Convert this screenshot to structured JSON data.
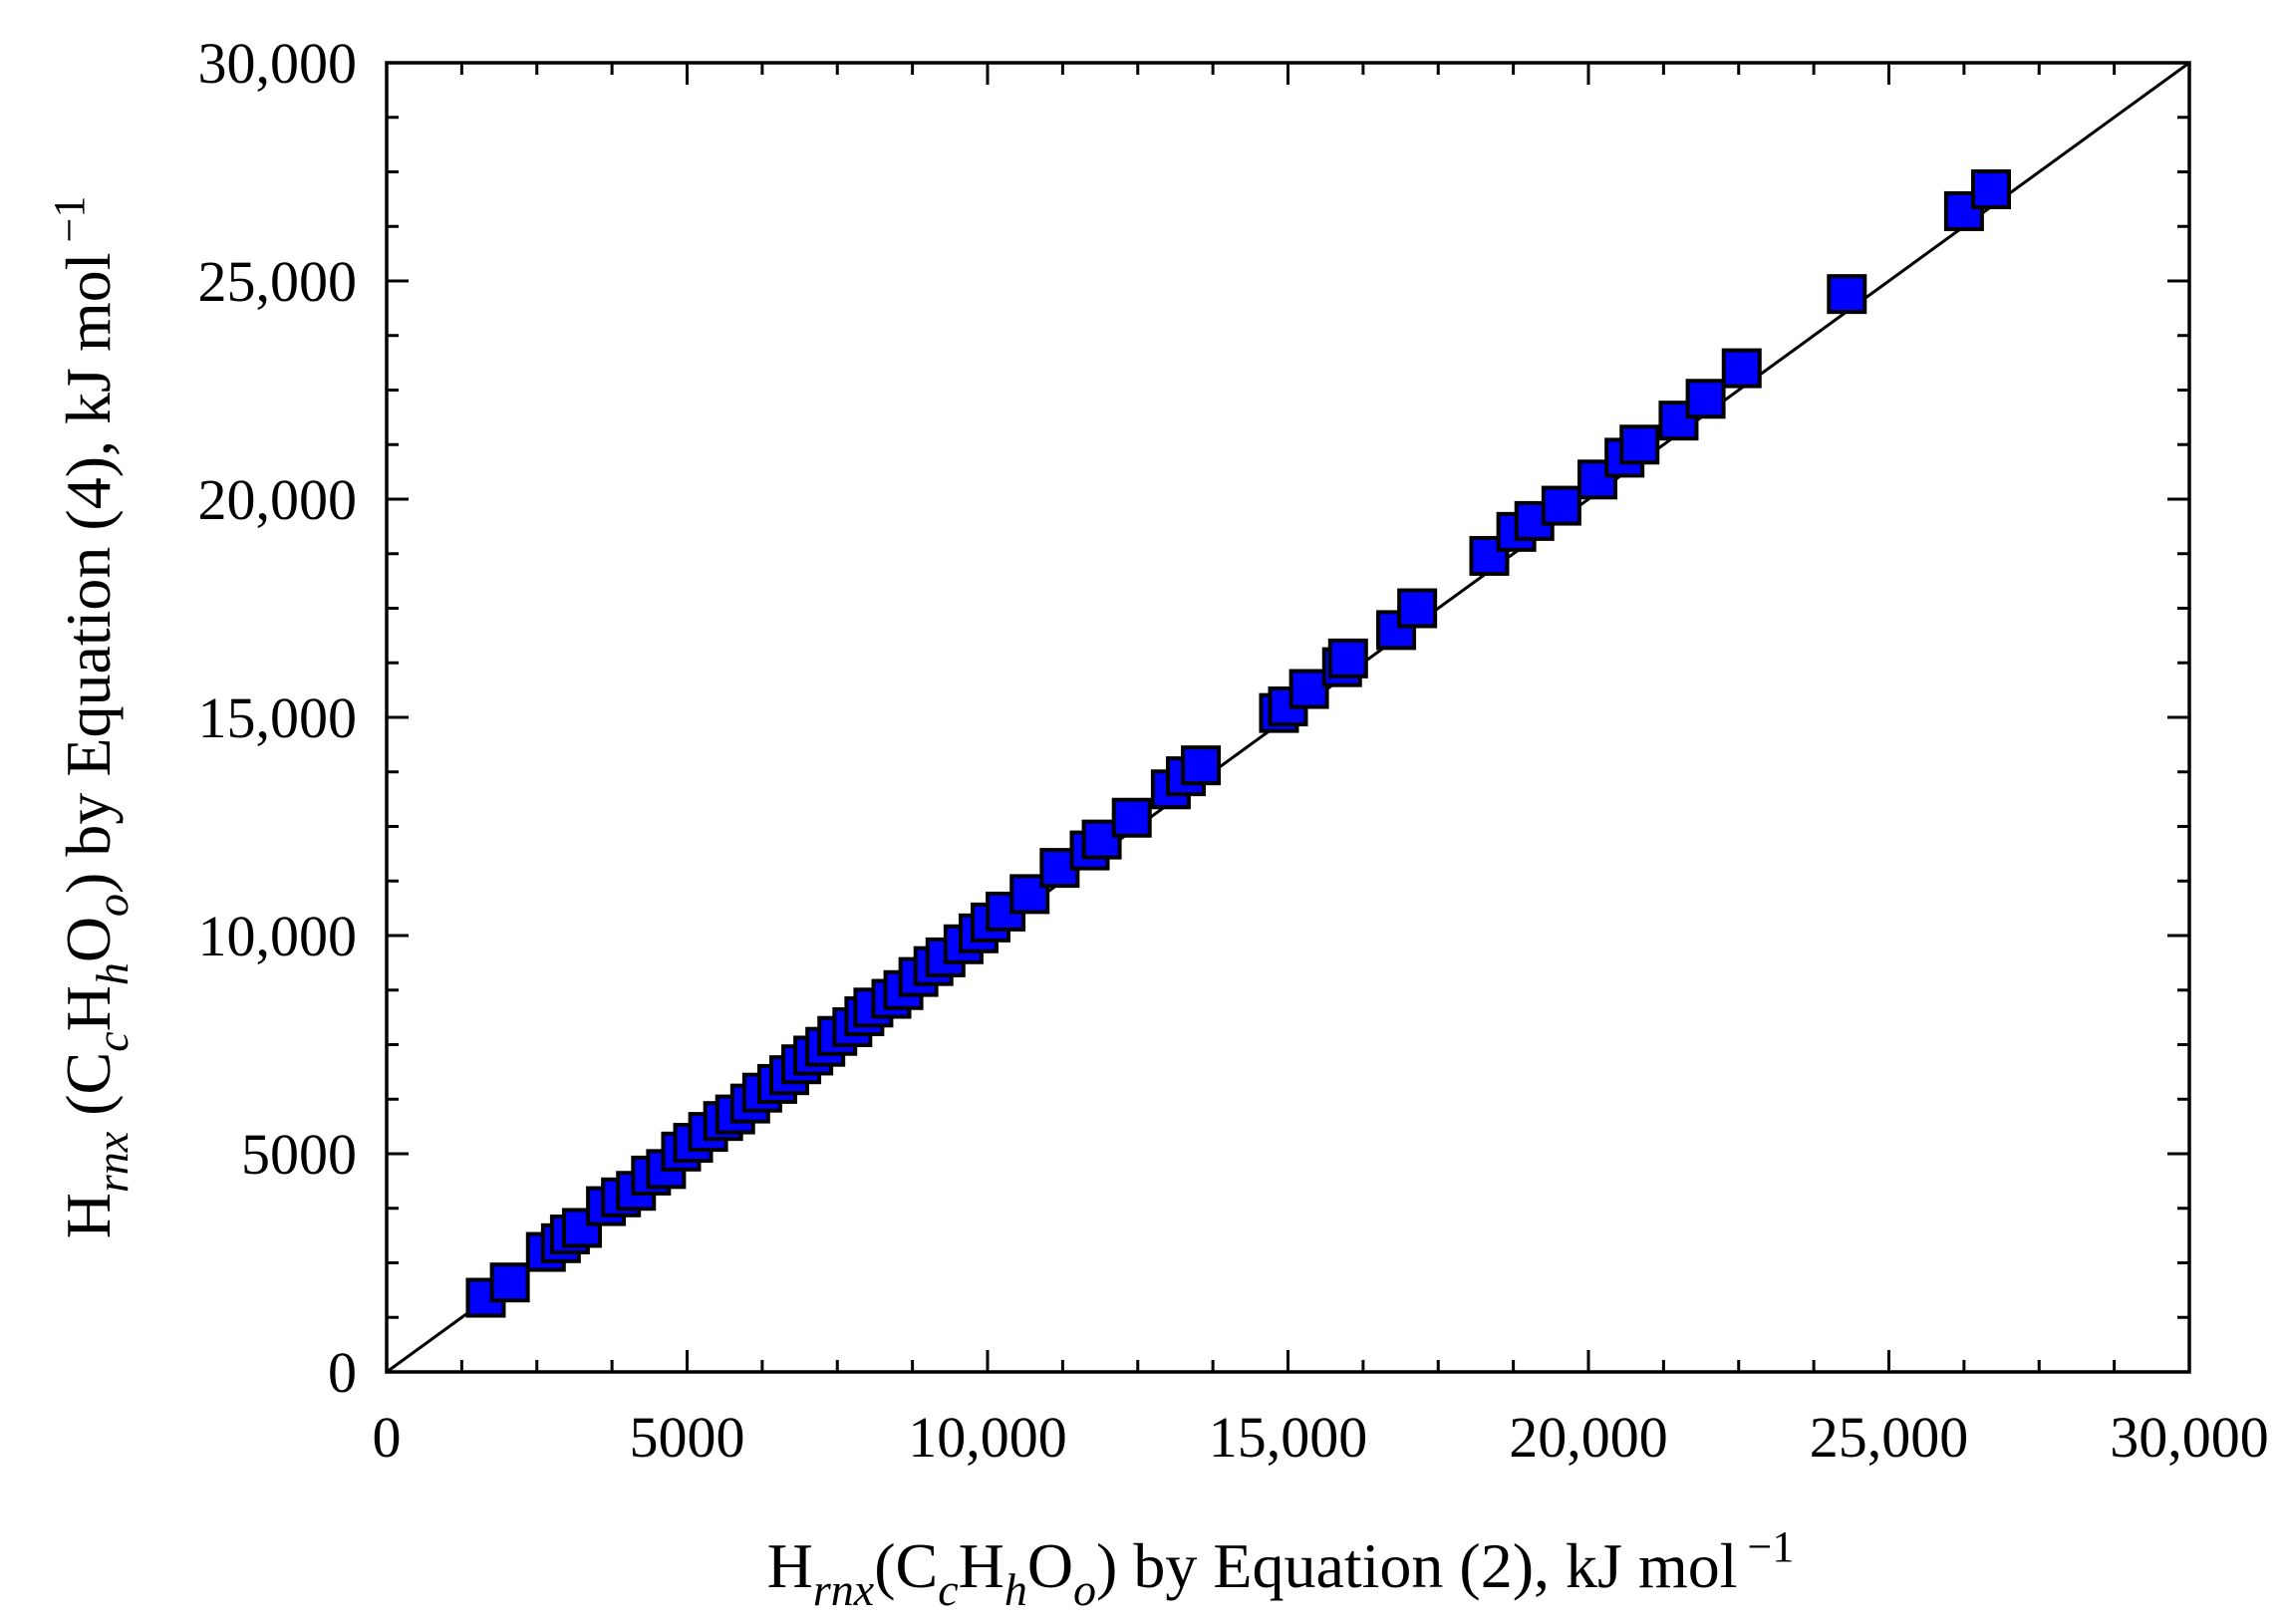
{
  "chart_data": {
    "type": "scatter",
    "xlabel": {
      "H": "H",
      "rnx": "rnx",
      "open": "(",
      "C": "C",
      "c": "c",
      "H2": "H",
      "h": "h",
      "O": "O",
      "o": "o",
      "close": ")",
      "rest": " by Equation (2), kJ mol",
      "exp": "−1"
    },
    "ylabel": {
      "H": "H",
      "rnx": "rnx",
      "open": " (",
      "C": "C",
      "c": "c",
      "H2": "H",
      "h": "h",
      "O": "O",
      "o": "o",
      "close": ")",
      "rest": " by Equation (4), kJ mol",
      "exp": "−1"
    },
    "xlim": [
      0,
      30000
    ],
    "ylim": [
      0,
      30000
    ],
    "x_ticks": [
      0,
      5000,
      10000,
      15000,
      20000,
      25000,
      30000
    ],
    "y_ticks": [
      0,
      5000,
      10000,
      15000,
      20000,
      25000,
      30000
    ],
    "x_tick_labels": [
      "0",
      "5000",
      "10,000",
      "15,000",
      "20,000",
      "25,000",
      "30,000"
    ],
    "y_tick_labels": [
      "0",
      "5000",
      "10,000",
      "15,000",
      "20,000",
      "25,000",
      "30,000"
    ],
    "grid": false,
    "reference_line": {
      "x": [
        0,
        30000
      ],
      "y": [
        0,
        30000
      ]
    },
    "marker_color": "#0000ff",
    "marker_edge_color": "#000000",
    "points": [
      [
        1650,
        1700
      ],
      [
        2050,
        2050
      ],
      [
        2650,
        2750
      ],
      [
        2900,
        2950
      ],
      [
        3050,
        3150
      ],
      [
        3250,
        3300
      ],
      [
        3650,
        3800
      ],
      [
        3900,
        4000
      ],
      [
        4150,
        4150
      ],
      [
        4400,
        4500
      ],
      [
        4650,
        4650
      ],
      [
        4900,
        5050
      ],
      [
        5100,
        5250
      ],
      [
        5350,
        5500
      ],
      [
        5600,
        5750
      ],
      [
        5800,
        5900
      ],
      [
        6050,
        6150
      ],
      [
        6250,
        6400
      ],
      [
        6500,
        6600
      ],
      [
        6700,
        6800
      ],
      [
        6900,
        7050
      ],
      [
        7100,
        7250
      ],
      [
        7300,
        7450
      ],
      [
        7500,
        7700
      ],
      [
        7750,
        7900
      ],
      [
        7950,
        8150
      ],
      [
        8100,
        8350
      ],
      [
        8400,
        8550
      ],
      [
        8600,
        8750
      ],
      [
        8850,
        9050
      ],
      [
        9100,
        9300
      ],
      [
        9300,
        9500
      ],
      [
        9600,
        9800
      ],
      [
        9850,
        10050
      ],
      [
        10050,
        10300
      ],
      [
        10300,
        10550
      ],
      [
        10700,
        10950
      ],
      [
        11200,
        11550
      ],
      [
        11700,
        11950
      ],
      [
        11900,
        12200
      ],
      [
        12400,
        12700
      ],
      [
        13050,
        13350
      ],
      [
        13300,
        13650
      ],
      [
        13550,
        13900
      ],
      [
        14850,
        15100
      ],
      [
        15000,
        15250
      ],
      [
        15350,
        15650
      ],
      [
        15900,
        16150
      ],
      [
        16000,
        16350
      ],
      [
        16800,
        17000
      ],
      [
        17150,
        17500
      ],
      [
        18350,
        18700
      ],
      [
        18800,
        19250
      ],
      [
        19100,
        19500
      ],
      [
        19550,
        19850
      ],
      [
        20150,
        20450
      ],
      [
        20600,
        20950
      ],
      [
        20850,
        21250
      ],
      [
        21500,
        21800
      ],
      [
        21950,
        22300
      ],
      [
        22550,
        23000
      ],
      [
        24300,
        24700
      ],
      [
        26250,
        26600
      ],
      [
        26700,
        27100
      ]
    ]
  }
}
